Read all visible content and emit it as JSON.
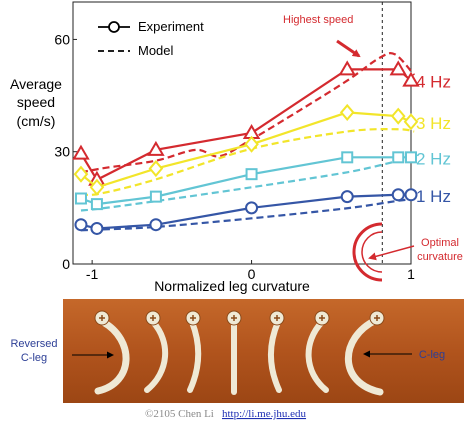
{
  "chart_data": {
    "type": "line",
    "xlabel": "Normalized leg curvature",
    "ylabel": [
      "Average",
      "speed",
      "(cm/s)"
    ],
    "xlim": [
      -1.12,
      1.0
    ],
    "ylim": [
      0,
      70
    ],
    "xticks": [
      {
        "v": -1,
        "label": "-1"
      },
      {
        "v": 0,
        "label": "0"
      },
      {
        "v": 1,
        "label": "1"
      }
    ],
    "yticks": [
      {
        "v": 0,
        "label": "0"
      },
      {
        "v": 30,
        "label": "30"
      },
      {
        "v": 60,
        "label": "60"
      }
    ],
    "legend": {
      "placement": "top-left",
      "experiment_label": "Experiment",
      "model_label": "Model"
    },
    "series": [
      {
        "name": "4 Hz",
        "color": "#d42a2f",
        "marker": "triangle",
        "experiment": [
          [
            -1.07,
            29.5
          ],
          [
            -0.97,
            22.5
          ],
          [
            -0.6,
            30.5
          ],
          [
            0,
            35
          ],
          [
            0.6,
            52
          ],
          [
            0.92,
            52
          ],
          [
            1.0,
            49
          ]
        ],
        "model": [
          [
            -1.07,
            24.5
          ],
          [
            -0.9,
            25.8
          ],
          [
            -0.6,
            27.6
          ],
          [
            -0.35,
            30.5
          ],
          [
            -0.2,
            28.8
          ],
          [
            0,
            33.3
          ],
          [
            0.3,
            41
          ],
          [
            0.6,
            49
          ],
          [
            0.8,
            55
          ],
          [
            0.9,
            56
          ],
          [
            1.02,
            50.5
          ]
        ]
      },
      {
        "name": "3 Hz",
        "color": "#f2e52a",
        "marker": "diamond",
        "experiment": [
          [
            -1.07,
            24
          ],
          [
            -0.97,
            20.5
          ],
          [
            -0.6,
            25.5
          ],
          [
            0,
            32
          ],
          [
            0.6,
            40.5
          ],
          [
            0.92,
            39.5
          ],
          [
            1.0,
            38
          ]
        ],
        "model": [
          [
            -1.07,
            18.6
          ],
          [
            -0.95,
            18.8
          ],
          [
            -0.6,
            22.6
          ],
          [
            0,
            30.8
          ],
          [
            0.6,
            35.4
          ],
          [
            0.92,
            36
          ],
          [
            1.02,
            35.4
          ]
        ]
      },
      {
        "name": "2 Hz",
        "color": "#62c5d4",
        "marker": "square",
        "experiment": [
          [
            -1.07,
            17.5
          ],
          [
            -0.97,
            16
          ],
          [
            -0.6,
            18
          ],
          [
            0,
            24
          ],
          [
            0.6,
            28.5
          ],
          [
            0.92,
            28.5
          ],
          [
            1.0,
            28.5
          ]
        ],
        "model": [
          [
            -1.07,
            14.3
          ],
          [
            -0.95,
            14.8
          ],
          [
            -0.6,
            16.8
          ],
          [
            0,
            20.5
          ],
          [
            0.6,
            24.5
          ],
          [
            0.92,
            27.5
          ],
          [
            1.02,
            27.7
          ]
        ]
      },
      {
        "name": "1 Hz",
        "color": "#3556a6",
        "marker": "circle",
        "experiment": [
          [
            -1.07,
            10.5
          ],
          [
            -0.97,
            9.5
          ],
          [
            -0.6,
            10.5
          ],
          [
            0,
            15
          ],
          [
            0.6,
            18
          ],
          [
            0.92,
            18.5
          ],
          [
            1.0,
            18.5
          ]
        ],
        "model": [
          [
            -1.07,
            9
          ],
          [
            -0.95,
            9.2
          ],
          [
            -0.6,
            9.9
          ],
          [
            0,
            12.2
          ],
          [
            0.6,
            14.9
          ],
          [
            0.92,
            16.9
          ],
          [
            1.02,
            17.3
          ]
        ]
      }
    ],
    "reference_line": {
      "x": 0.82,
      "style": "dashed"
    },
    "annotations": {
      "highest_speed": "Highest speed",
      "optimal_curvature": [
        "Optimal",
        "curvature"
      ]
    }
  },
  "photo": {
    "reversed_label": [
      "Reversed",
      "C-leg"
    ],
    "cleg_label": "C-leg"
  },
  "credit": {
    "text": "©2105 Chen Li",
    "link": "http://li.me.jhu.edu"
  },
  "colors": {
    "annotation_red": "#d42a2f",
    "photo_background": "#b1541d",
    "photo_label_blue": "#2d3f96",
    "credit_text": "#8a8a8a",
    "link_blue": "#1f2fb3"
  }
}
